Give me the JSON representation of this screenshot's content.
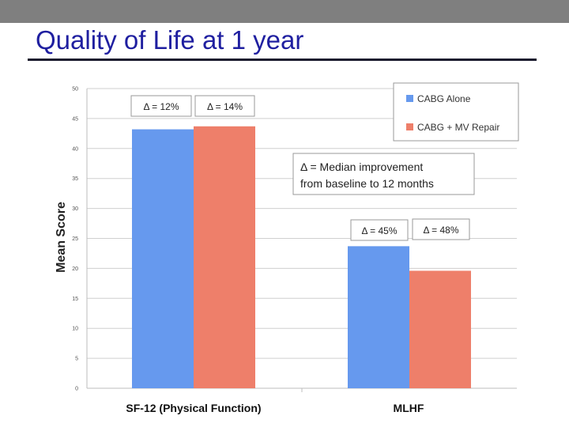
{
  "slide": {
    "title": "Quality of Life at 1 year"
  },
  "colors": {
    "series1": "#6699ee",
    "series2": "#ee7f6a",
    "title": "#1f1fa0",
    "top_bar": "#7f7f7f"
  },
  "chart_data": {
    "type": "bar",
    "categories": [
      "SF-12 (Physical Function)",
      "MLHF"
    ],
    "series": [
      {
        "name": "CABG Alone",
        "values": [
          43.2,
          23.7
        ],
        "deltas": [
          "Δ = 12%",
          "Δ = 45%"
        ]
      },
      {
        "name": "CABG + MV Repair",
        "values": [
          43.7,
          19.6
        ],
        "deltas": [
          "Δ = 14%",
          "Δ = 48%"
        ]
      }
    ],
    "ylabel": "Mean Score",
    "xlabel": "",
    "ylim": [
      0,
      50
    ],
    "yticks": [
      "0",
      "5",
      "10",
      "15",
      "20",
      "25",
      "30",
      "35",
      "40",
      "45",
      "50"
    ],
    "grid": true,
    "legend_position": "top-right",
    "annotation": [
      "Δ = Median improvement",
      "from baseline to 12 months"
    ]
  }
}
